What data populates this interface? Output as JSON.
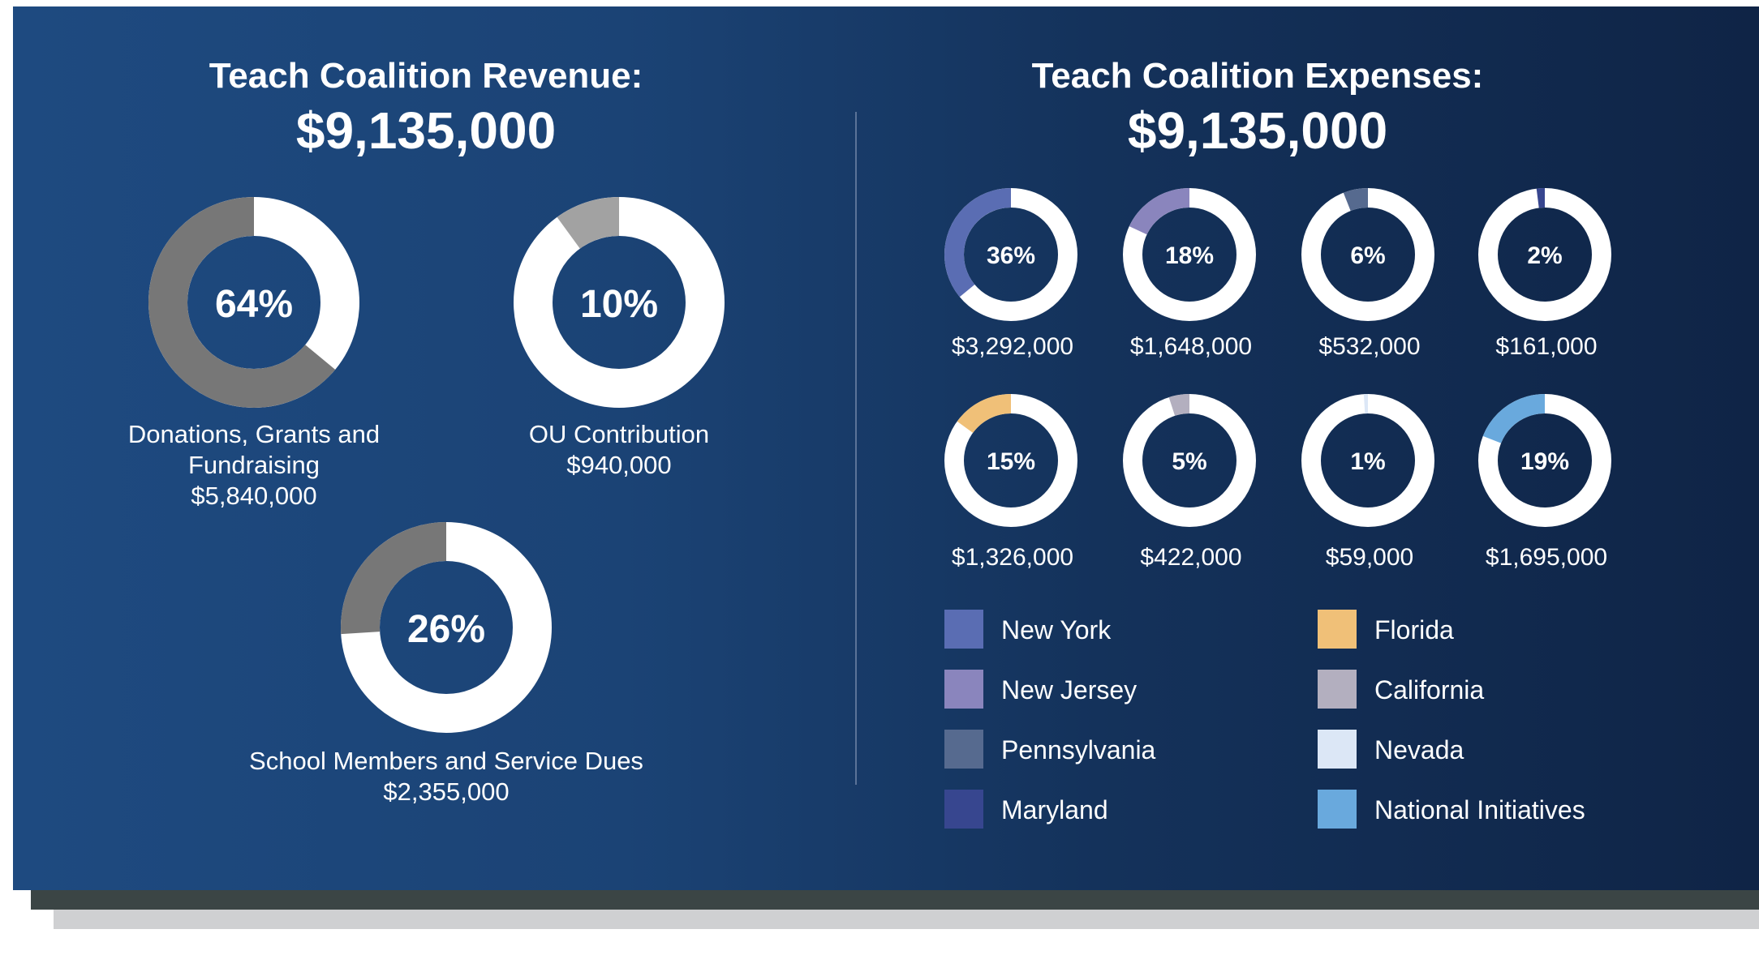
{
  "chart_data": [
    {
      "type": "donut",
      "title": "Teach Coalition Revenue:",
      "total": "$9,135,000",
      "items": [
        {
          "label": "Donations, Grants and Fundraising",
          "label_lines": [
            "Donations, Grants and",
            "Fundraising"
          ],
          "percent": 64,
          "percent_label": "64%",
          "amount": "$5,840,000",
          "color": "#777777"
        },
        {
          "label": "OU Contribution",
          "label_lines": [
            "OU Contribution"
          ],
          "percent": 10,
          "percent_label": "10%",
          "amount": "$940,000",
          "color": "#a2a2a2"
        },
        {
          "label": "School Members and Service Dues",
          "label_lines": [
            "School Members and Service Dues"
          ],
          "percent": 26,
          "percent_label": "26%",
          "amount": "$2,355,000",
          "color": "#777777"
        }
      ]
    },
    {
      "type": "donut",
      "title": "Teach Coalition Expenses:",
      "total": "$9,135,000",
      "items": [
        {
          "label": "New York",
          "percent": 36,
          "percent_label": "36%",
          "amount": "$3,292,000",
          "color": "#5a6db3"
        },
        {
          "label": "New Jersey",
          "percent": 18,
          "percent_label": "18%",
          "amount": "$1,648,000",
          "color": "#8a85bd"
        },
        {
          "label": "Pennsylvania",
          "percent": 6,
          "percent_label": "6%",
          "amount": "$532,000",
          "color": "#566a8f"
        },
        {
          "label": "Maryland",
          "percent": 2,
          "percent_label": "2%",
          "amount": "$161,000",
          "color": "#37468f"
        },
        {
          "label": "Florida",
          "percent": 15,
          "percent_label": "15%",
          "amount": "$1,326,000",
          "color": "#f0c078"
        },
        {
          "label": "California",
          "percent": 5,
          "percent_label": "5%",
          "amount": "$422,000",
          "color": "#b3afbf"
        },
        {
          "label": "Nevada",
          "percent": 1,
          "percent_label": "1%",
          "amount": "$59,000",
          "color": "#dce7f6"
        },
        {
          "label": "National Initiatives",
          "percent": 19,
          "percent_label": "19%",
          "amount": "$1,695,000",
          "color": "#69a9dd"
        }
      ],
      "legend": [
        "New York",
        "New Jersey",
        "Pennsylvania",
        "Maryland",
        "Florida",
        "California",
        "Nevada",
        "National Initiatives"
      ]
    }
  ]
}
